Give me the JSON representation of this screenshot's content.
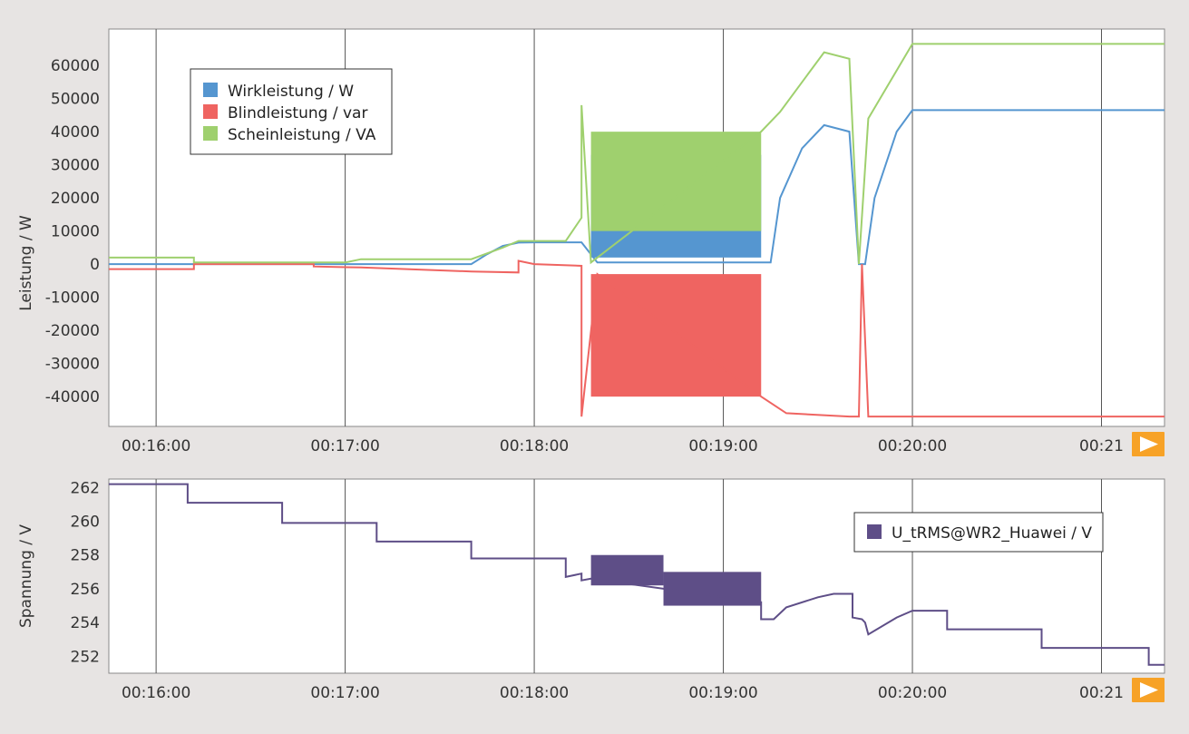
{
  "chart_data": [
    {
      "type": "line",
      "ylabel": "Leistung / W",
      "ylim": [
        -49000,
        71000
      ],
      "xlim": [
        "00:15:45",
        "00:21:20"
      ],
      "y_ticks": [
        60000,
        50000,
        40000,
        30000,
        20000,
        10000,
        0,
        -10000,
        -20000,
        -30000,
        -40000
      ],
      "x_ticks": [
        "00:16:00",
        "00:17:00",
        "00:18:00",
        "00:19:00",
        "00:20:00",
        "00:21"
      ],
      "grid": "vertical",
      "legend_position": "top-left",
      "series": [
        {
          "name": "Wirkleistung / W",
          "color": "#5596d0",
          "points": [
            [
              "00:15:45",
              0
            ],
            [
              "00:17:40",
              0
            ],
            [
              "00:17:45",
              3000
            ],
            [
              "00:17:50",
              5500
            ],
            [
              "00:17:55",
              6500
            ],
            [
              "00:18:00",
              6600
            ],
            [
              "00:18:10",
              6600
            ],
            [
              "00:18:15",
              6600
            ],
            [
              "00:18:20",
              500
            ],
            [
              "00:19:15",
              500
            ],
            [
              "00:19:18",
              20000
            ],
            [
              "00:19:25",
              35000
            ],
            [
              "00:19:32",
              42000
            ],
            [
              "00:19:40",
              40000
            ],
            [
              "00:19:43",
              0
            ],
            [
              "00:19:45",
              0
            ],
            [
              "00:19:48",
              20000
            ],
            [
              "00:19:55",
              40000
            ],
            [
              "00:20:00",
              46500
            ],
            [
              "00:21:20",
              46500
            ]
          ],
          "bands": [
            {
              "from": "00:18:18",
              "to": "00:19:12",
              "low": 2000,
              "high": 33000
            }
          ]
        },
        {
          "name": "Blindleistung / var",
          "color": "#ef6461",
          "points": [
            [
              "00:15:45",
              -1500
            ],
            [
              "00:16:12",
              -1500
            ],
            [
              "00:16:12",
              0
            ],
            [
              "00:16:50",
              0
            ],
            [
              "00:16:50",
              -700
            ],
            [
              "00:17:05",
              -1000
            ],
            [
              "00:17:40",
              -2200
            ],
            [
              "00:17:55",
              -2500
            ],
            [
              "00:17:55",
              1000
            ],
            [
              "00:18:00",
              0
            ],
            [
              "00:18:15",
              -500
            ],
            [
              "00:18:15",
              -46000
            ],
            [
              "00:18:20",
              -3000
            ],
            [
              "00:19:12",
              -40000
            ],
            [
              "00:19:20",
              -45000
            ],
            [
              "00:19:40",
              -46000
            ],
            [
              "00:19:43",
              -46000
            ],
            [
              "00:19:44",
              0
            ],
            [
              "00:19:46",
              -46000
            ],
            [
              "00:21:20",
              -46000
            ]
          ],
          "bands": [
            {
              "from": "00:18:18",
              "to": "00:19:12",
              "low": -40000,
              "high": -3000
            }
          ]
        },
        {
          "name": "Scheinleistung / VA",
          "color": "#9fd06e",
          "points": [
            [
              "00:15:45",
              2000
            ],
            [
              "00:16:12",
              2000
            ],
            [
              "00:16:12",
              500
            ],
            [
              "00:17:00",
              500
            ],
            [
              "00:17:05",
              1500
            ],
            [
              "00:17:40",
              1500
            ],
            [
              "00:17:50",
              5000
            ],
            [
              "00:17:55",
              7000
            ],
            [
              "00:18:10",
              7000
            ],
            [
              "00:18:15",
              14000
            ],
            [
              "00:18:15",
              48000
            ],
            [
              "00:18:18",
              500
            ],
            [
              "00:19:12",
              40000
            ],
            [
              "00:19:18",
              46000
            ],
            [
              "00:19:32",
              64000
            ],
            [
              "00:19:40",
              62000
            ],
            [
              "00:19:43",
              0
            ],
            [
              "00:19:46",
              44000
            ],
            [
              "00:20:00",
              66500
            ],
            [
              "00:21:20",
              66500
            ]
          ],
          "bands": [
            {
              "from": "00:18:18",
              "to": "00:19:12",
              "low": 10000,
              "high": 40000
            }
          ]
        }
      ]
    },
    {
      "type": "line",
      "ylabel": "Spannung / V",
      "ylim": [
        251,
        262.5
      ],
      "xlim": [
        "00:15:45",
        "00:21:20"
      ],
      "y_ticks": [
        262,
        260,
        258,
        256,
        254,
        252
      ],
      "x_ticks": [
        "00:16:00",
        "00:17:00",
        "00:18:00",
        "00:19:00",
        "00:20:00",
        "00:21"
      ],
      "grid": "vertical",
      "legend_position": "right",
      "series": [
        {
          "name": "U_tRMS@WR2_Huawei / V",
          "color": "#5e4e87",
          "points": [
            [
              "00:15:45",
              262.2
            ],
            [
              "00:16:10",
              262.2
            ],
            [
              "00:16:10",
              261.1
            ],
            [
              "00:16:40",
              261.1
            ],
            [
              "00:16:40",
              259.9
            ],
            [
              "00:17:10",
              259.9
            ],
            [
              "00:17:10",
              258.8
            ],
            [
              "00:17:40",
              258.8
            ],
            [
              "00:17:40",
              257.8
            ],
            [
              "00:18:10",
              257.8
            ],
            [
              "00:18:10",
              256.7
            ],
            [
              "00:18:15",
              256.9
            ],
            [
              "00:18:15",
              256.5
            ],
            [
              "00:18:18",
              256.6
            ],
            [
              "00:19:12",
              255.2
            ],
            [
              "00:19:12",
              254.2
            ],
            [
              "00:19:16",
              254.2
            ],
            [
              "00:19:20",
              254.9
            ],
            [
              "00:19:30",
              255.5
            ],
            [
              "00:19:35",
              255.7
            ],
            [
              "00:19:41",
              255.7
            ],
            [
              "00:19:41",
              254.3
            ],
            [
              "00:19:44",
              254.2
            ],
            [
              "00:19:45",
              254.0
            ],
            [
              "00:19:46",
              253.3
            ],
            [
              "00:19:55",
              254.3
            ],
            [
              "00:20:00",
              254.7
            ],
            [
              "00:20:11",
              254.7
            ],
            [
              "00:20:11",
              253.6
            ],
            [
              "00:20:41",
              253.6
            ],
            [
              "00:20:41",
              252.5
            ],
            [
              "00:21:15",
              252.5
            ],
            [
              "00:21:15",
              251.5
            ],
            [
              "00:21:20",
              251.5
            ]
          ],
          "bands": [
            {
              "from": "00:18:18",
              "to": "00:18:41",
              "low": 256.2,
              "high": 258.0
            },
            {
              "from": "00:18:41",
              "to": "00:19:12",
              "low": 255.0,
              "high": 257.0
            }
          ]
        }
      ]
    }
  ]
}
